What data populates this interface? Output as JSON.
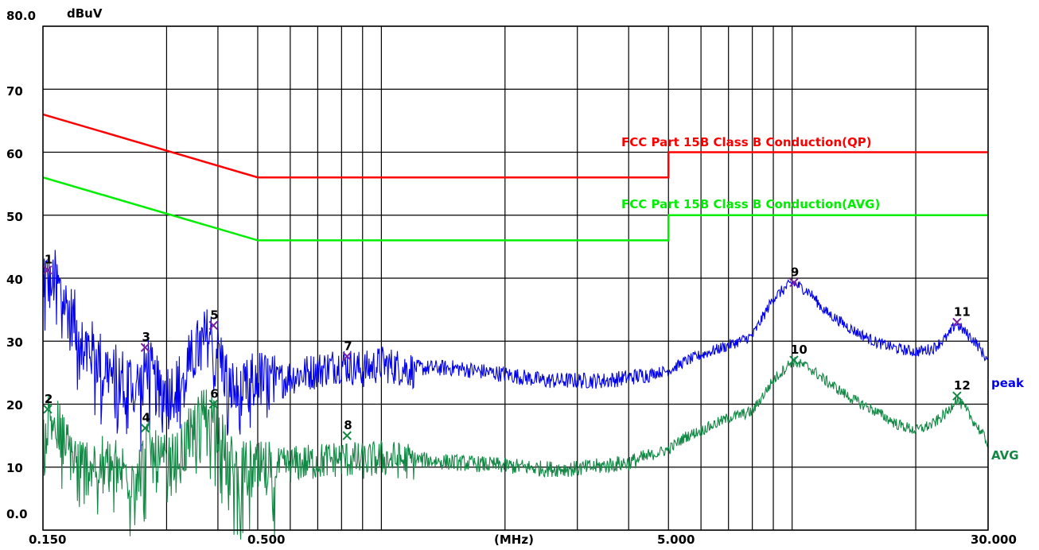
{
  "chart_data": {
    "type": "line",
    "xscale": "log",
    "xlim": [
      0.15,
      30
    ],
    "ylim": [
      0,
      80
    ],
    "ylabel": "dBuV",
    "xlabel": "(MHz)",
    "ytick_labels": [
      "80.0",
      "70",
      "60",
      "50",
      "40",
      "30",
      "20",
      "10",
      "0.0"
    ],
    "xtick_labels": [
      "0.150",
      "0.500",
      "(MHz)",
      "5.000",
      "30.000"
    ],
    "grid": true,
    "colors": {
      "qp_limit": "#ff0000",
      "avg_limit": "#00ee00",
      "peak": "#0000ee",
      "avg": "#118844",
      "marker_peak": "#7a1fa2",
      "marker_avg": "#118844",
      "grid": "#000000"
    },
    "limit_lines": [
      {
        "name": "FCC Part 15B Class B Conduction(QP)",
        "segments": [
          [
            0.15,
            66,
            0.5,
            56
          ],
          [
            0.5,
            56,
            5,
            56
          ],
          [
            5,
            60,
            30,
            60
          ]
        ]
      },
      {
        "name": "FCC Part 15B Class B Conduction(AVG)",
        "segments": [
          [
            0.15,
            56,
            0.5,
            46
          ],
          [
            0.5,
            46,
            5,
            46
          ],
          [
            5,
            50,
            30,
            50
          ]
        ]
      }
    ],
    "series": [
      {
        "name": "peak",
        "x": [
          0.15,
          0.155,
          0.16,
          0.17,
          0.18,
          0.19,
          0.2,
          0.22,
          0.24,
          0.26,
          0.27,
          0.28,
          0.3,
          0.32,
          0.35,
          0.38,
          0.4,
          0.42,
          0.45,
          0.48,
          0.5,
          0.55,
          0.6,
          0.7,
          0.8,
          0.9,
          1.0,
          1.2,
          1.5,
          2.0,
          2.5,
          3.0,
          3.5,
          4.0,
          4.5,
          5.0,
          5.5,
          6.0,
          7.0,
          8.0,
          9.0,
          10.0,
          11.0,
          12.0,
          14.0,
          16.0,
          18.0,
          20.0,
          22.0,
          24.0,
          25.0,
          26.0,
          28.0,
          30.0
        ],
        "values": [
          43,
          40,
          41,
          37,
          34,
          31,
          29,
          26,
          25,
          24,
          28,
          24,
          23,
          24,
          29,
          32,
          30,
          25,
          22,
          24,
          25,
          24,
          25,
          26,
          27,
          26,
          27,
          26,
          26,
          25,
          24,
          24,
          24,
          24.5,
          25,
          25.5,
          27,
          28,
          29.5,
          31,
          37,
          39.5,
          38,
          35,
          32,
          30,
          29,
          28.5,
          29,
          31,
          33,
          32,
          30,
          27
        ]
      },
      {
        "name": "AVG",
        "x": [
          0.15,
          0.155,
          0.16,
          0.17,
          0.18,
          0.19,
          0.2,
          0.22,
          0.24,
          0.26,
          0.27,
          0.28,
          0.3,
          0.32,
          0.35,
          0.38,
          0.4,
          0.42,
          0.45,
          0.48,
          0.5,
          0.55,
          0.6,
          0.7,
          0.8,
          0.9,
          1.0,
          1.2,
          1.5,
          2.0,
          2.5,
          3.0,
          3.5,
          4.0,
          4.5,
          5.0,
          5.5,
          6.0,
          7.0,
          8.0,
          9.0,
          10.0,
          11.0,
          12.0,
          14.0,
          16.0,
          18.0,
          20.0,
          22.0,
          24.0,
          25.0,
          26.0,
          28.0,
          30.0
        ],
        "values": [
          13,
          19,
          18,
          15,
          12,
          11,
          12,
          11,
          10,
          10.5,
          15,
          12,
          11,
          12,
          17,
          20,
          18,
          12,
          10,
          10.5,
          10,
          10.5,
          11,
          11.5,
          12,
          11.5,
          12,
          11.5,
          11,
          10.5,
          10,
          10,
          10.5,
          11,
          12,
          13,
          15,
          16,
          18,
          19,
          24,
          27,
          26,
          24,
          21,
          19,
          17,
          16,
          17,
          19,
          21,
          20,
          17,
          14
        ]
      }
    ],
    "markers": [
      {
        "id": "1",
        "freq": 0.154,
        "level": 41.3,
        "series": "peak"
      },
      {
        "id": "2",
        "freq": 0.154,
        "level": 19.2,
        "series": "AVG"
      },
      {
        "id": "3",
        "freq": 0.266,
        "level": 29.0,
        "series": "peak"
      },
      {
        "id": "4",
        "freq": 0.266,
        "level": 16.2,
        "series": "AVG"
      },
      {
        "id": "5",
        "freq": 0.39,
        "level": 32.5,
        "series": "peak"
      },
      {
        "id": "6",
        "freq": 0.39,
        "level": 20.0,
        "series": "AVG"
      },
      {
        "id": "7",
        "freq": 0.825,
        "level": 27.6,
        "series": "peak"
      },
      {
        "id": "8",
        "freq": 0.825,
        "level": 15.0,
        "series": "AVG"
      },
      {
        "id": "9",
        "freq": 10.1,
        "level": 39.3,
        "series": "peak"
      },
      {
        "id": "10",
        "freq": 10.1,
        "level": 27.0,
        "series": "AVG"
      },
      {
        "id": "11",
        "freq": 25.2,
        "level": 33.0,
        "series": "peak"
      },
      {
        "id": "12",
        "freq": 25.2,
        "level": 21.3,
        "series": "AVG"
      }
    ],
    "vertical_gridlines": [
      0.15,
      0.3,
      0.4,
      0.5,
      0.6,
      0.7,
      0.8,
      0.9,
      1,
      2,
      3,
      4,
      5,
      6,
      7,
      8,
      9,
      10,
      20,
      30
    ],
    "horizontal_gridlines": [
      0,
      10,
      20,
      30,
      40,
      50,
      60,
      70,
      80
    ]
  }
}
